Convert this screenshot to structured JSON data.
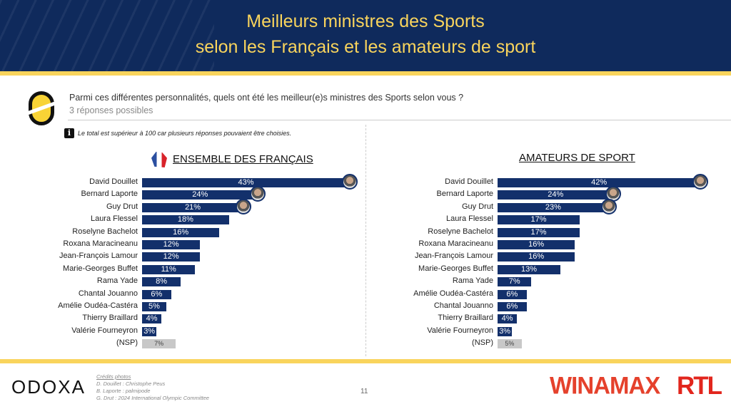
{
  "title_line1": "Meilleurs ministres des Sports",
  "title_line2": "selon les Français et les amateurs de sport",
  "question": "Parmi ces différentes personnalités, quels ont été les meilleur(e)s ministres des Sports selon vous ?",
  "subtitle": "3 réponses possibles",
  "note": "Le total est supérieur à 100 car plusieurs réponses pouvaient être choisies.",
  "note_icon": "i",
  "colors": {
    "bar": "#13306b",
    "nsp": "#c8c8c8",
    "accent": "#f9d45c",
    "header": "#0f2a5c"
  },
  "chart_data": [
    {
      "type": "bar",
      "title": "ENSEMBLE DES FRANÇAIS",
      "unit": "%",
      "categories": [
        "David Douillet",
        "Bernard Laporte",
        "Guy Drut",
        "Laura Flessel",
        "Roselyne Bachelot",
        "Roxana Maracineanu",
        "Jean-François Lamour",
        "Marie-Georges Buffet",
        "Rama Yade",
        "Chantal Jouanno",
        "Amélie Oudéa-Castéra",
        "Thierry Braillard",
        "Valérie Fourneyron",
        "(NSP)"
      ],
      "values": [
        43,
        24,
        21,
        18,
        16,
        12,
        12,
        11,
        8,
        6,
        5,
        4,
        3,
        7
      ],
      "labels": [
        "43%",
        "24%",
        "21%",
        "18%",
        "16%",
        "12%",
        "12%",
        "11%",
        "8%",
        "6%",
        "5%",
        "4%",
        "3%",
        "7%"
      ]
    },
    {
      "type": "bar",
      "title": "AMATEURS DE SPORT",
      "unit": "%",
      "categories": [
        "David Douillet",
        "Bernard Laporte",
        "Guy Drut",
        "Laura Flessel",
        "Roselyne Bachelot",
        "Roxana Maracineanu",
        "Jean-François Lamour",
        "Marie-Georges Buffet",
        "Rama Yade",
        "Amélie Oudéa-Castéra",
        "Chantal Jouanno",
        "Thierry Braillard",
        "Valérie Fourneyron",
        "(NSP)"
      ],
      "values": [
        42,
        24,
        23,
        17,
        17,
        16,
        16,
        13,
        7,
        6,
        6,
        4,
        3,
        5
      ],
      "labels": [
        "42%",
        "24%",
        "23%",
        "17%",
        "17%",
        "16%",
        "16%",
        "13%",
        "7%",
        "6%",
        "6%",
        "4%",
        "3%",
        "5%"
      ]
    }
  ],
  "footer": {
    "brand": "ODOXA",
    "credits_title": "Crédits photos",
    "credits": [
      "D. Douillet : Christophe Peus",
      "B. Laporte : palmipode",
      "G. Drut : 2024 International Olympic Committee"
    ],
    "page": "11",
    "partner1": "WINAMAX",
    "partner2": "RTL"
  }
}
